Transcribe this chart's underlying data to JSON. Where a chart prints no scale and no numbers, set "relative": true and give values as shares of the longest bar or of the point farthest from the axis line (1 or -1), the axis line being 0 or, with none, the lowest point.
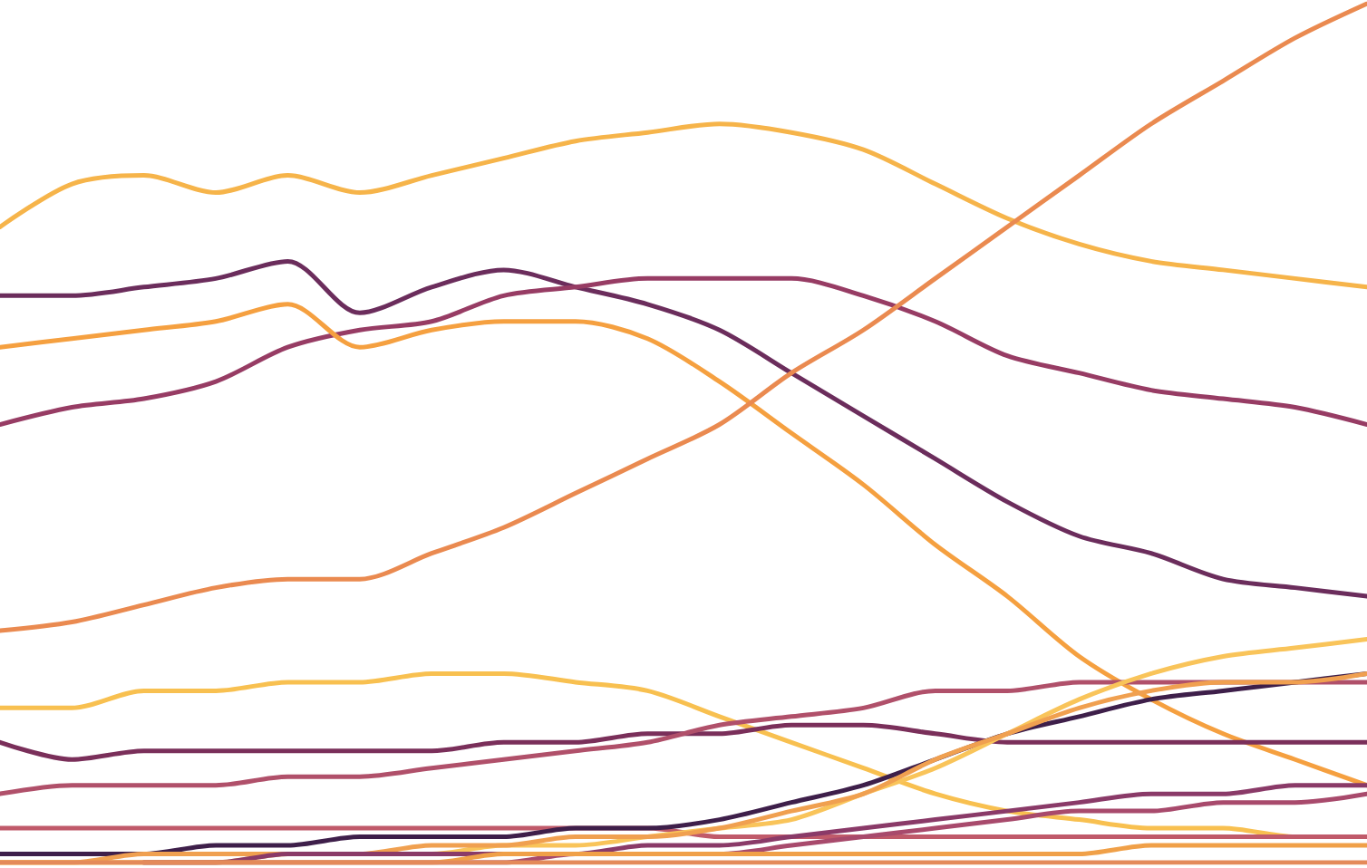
{
  "chart_data": {
    "type": "line",
    "relative": true,
    "categories": [
      null,
      null,
      null,
      null,
      null,
      null,
      null,
      null,
      null,
      null,
      null,
      null,
      null,
      null,
      null,
      null,
      null,
      null,
      null,
      null
    ],
    "series": [
      {
        "color": "#f6b44a",
        "values": [
          0.74,
          0.79,
          0.8,
          0.78,
          0.8,
          0.78,
          0.8,
          0.82,
          0.84,
          0.85,
          0.86,
          0.85,
          0.83,
          0.79,
          0.75,
          0.72,
          0.7,
          0.69,
          0.68,
          0.67
        ]
      },
      {
        "color": "#6b2d5c",
        "values": [
          0.66,
          0.66,
          0.67,
          0.68,
          0.7,
          0.64,
          0.67,
          0.69,
          0.67,
          0.65,
          0.62,
          0.57,
          0.52,
          0.47,
          0.42,
          0.38,
          0.36,
          0.33,
          0.32,
          0.31
        ]
      },
      {
        "color": "#973c64",
        "values": [
          0.51,
          0.53,
          0.54,
          0.56,
          0.6,
          0.62,
          0.63,
          0.66,
          0.67,
          0.68,
          0.68,
          0.68,
          0.66,
          0.63,
          0.59,
          0.57,
          0.55,
          0.54,
          0.53,
          0.51
        ]
      },
      {
        "color": "#f5a040",
        "values": [
          0.6,
          0.61,
          0.62,
          0.63,
          0.65,
          0.6,
          0.62,
          0.63,
          0.63,
          0.61,
          0.56,
          0.5,
          0.44,
          0.37,
          0.31,
          0.24,
          0.19,
          0.15,
          0.12,
          0.09
        ]
      },
      {
        "color": "#ea8a50",
        "values": [
          0.27,
          0.28,
          0.3,
          0.32,
          0.33,
          0.33,
          0.36,
          0.39,
          0.43,
          0.47,
          0.51,
          0.57,
          0.62,
          0.68,
          0.74,
          0.8,
          0.86,
          0.91,
          0.96,
          1
        ]
      },
      {
        "color": "#f8c050",
        "values": [
          0.18,
          0.18,
          0.2,
          0.2,
          0.21,
          0.21,
          0.22,
          0.22,
          0.21,
          0.2,
          0.17,
          0.14,
          0.11,
          0.08,
          0.06,
          0.05,
          0.04,
          0.04,
          0.03,
          0.03
        ]
      },
      {
        "color": "#7a2f5a",
        "values": [
          0.14,
          0.12,
          0.13,
          0.13,
          0.13,
          0.13,
          0.13,
          0.14,
          0.14,
          0.15,
          0.15,
          0.16,
          0.16,
          0.15,
          0.14,
          0.14,
          0.14,
          0.14,
          0.14,
          0.14
        ]
      },
      {
        "color": "#b0506a",
        "values": [
          0.08,
          0.09,
          0.09,
          0.09,
          0.1,
          0.1,
          0.11,
          0.12,
          0.13,
          0.14,
          0.16,
          0.17,
          0.18,
          0.2,
          0.2,
          0.21,
          0.21,
          0.21,
          0.21,
          0.21
        ]
      },
      {
        "color": "#c05a6a",
        "values": [
          0.04,
          0.04,
          0.04,
          0.04,
          0.04,
          0.04,
          0.04,
          0.04,
          0.04,
          0.04,
          0.03,
          0.03,
          0.03,
          0.03,
          0.03,
          0.03,
          0.03,
          0.03,
          0.03,
          0.03
        ]
      },
      {
        "color": "#3e1f4a",
        "values": [
          0.01,
          0.01,
          0.01,
          0.02,
          0.02,
          0.03,
          0.03,
          0.03,
          0.04,
          0.04,
          0.05,
          0.07,
          0.09,
          0.12,
          0.15,
          0.17,
          0.19,
          0.2,
          0.21,
          0.22
        ]
      },
      {
        "color": "#f9c45a",
        "values": [
          0,
          0,
          0,
          0,
          0.01,
          0.01,
          0.01,
          0.02,
          0.02,
          0.03,
          0.04,
          0.05,
          0.08,
          0.11,
          0.15,
          0.19,
          0.22,
          0.24,
          0.25,
          0.26
        ]
      },
      {
        "color": "#f0a050",
        "values": [
          0,
          0,
          0.01,
          0.01,
          0.01,
          0.01,
          0.02,
          0.02,
          0.03,
          0.03,
          0.04,
          0.06,
          0.08,
          0.12,
          0.15,
          0.18,
          0.2,
          0.21,
          0.21,
          0.22
        ]
      },
      {
        "color": "#8a3a68",
        "values": [
          null,
          null,
          0,
          0,
          0.01,
          0.01,
          0.01,
          0.01,
          0.01,
          0.02,
          0.02,
          0.03,
          0.04,
          0.05,
          0.06,
          0.07,
          0.08,
          0.08,
          0.09,
          0.09
        ]
      },
      {
        "color": "#a84a6c",
        "values": [
          null,
          null,
          0,
          0,
          0,
          0,
          0,
          0,
          0.01,
          0.01,
          0.01,
          0.02,
          0.03,
          0.04,
          0.05,
          0.06,
          0.06,
          0.07,
          0.07,
          0.08
        ]
      },
      {
        "color": "#f0a048",
        "values": [
          0,
          0,
          0,
          0,
          0,
          0,
          0,
          0.01,
          0.01,
          0.01,
          0.01,
          0.01,
          0.01,
          0.01,
          0.01,
          0.01,
          0.02,
          0.02,
          0.02,
          0.02
        ]
      },
      {
        "color": "#e48a5a",
        "values": [
          0,
          0,
          0,
          0,
          0,
          0,
          0,
          0,
          0,
          0,
          0,
          0,
          0,
          0,
          0,
          0,
          0,
          0,
          0,
          0
        ]
      }
    ]
  }
}
